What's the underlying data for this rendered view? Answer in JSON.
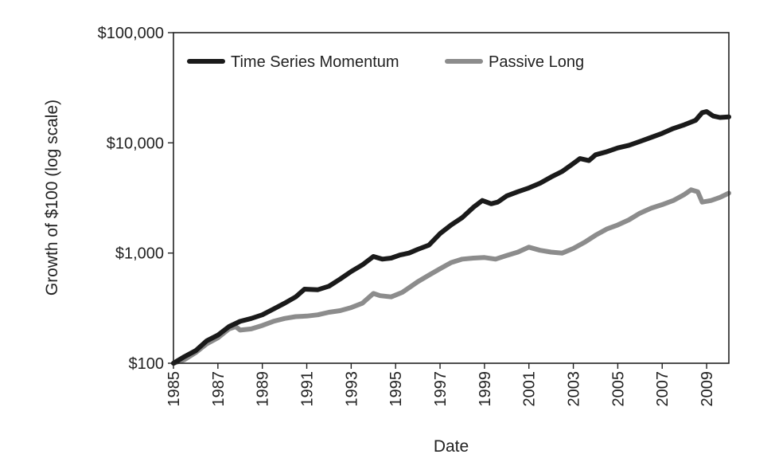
{
  "chart_data": {
    "type": "line",
    "title": "",
    "xlabel": "Date",
    "ylabel": "Growth of $100 (log scale)",
    "y_scale": "log",
    "ylim": [
      100,
      100000
    ],
    "xlim": [
      1985,
      2010
    ],
    "y_ticks": [
      {
        "value": 100,
        "label": "$100"
      },
      {
        "value": 1000,
        "label": "$1,000"
      },
      {
        "value": 10000,
        "label": "$10,000"
      },
      {
        "value": 100000,
        "label": "$100,000"
      }
    ],
    "x_ticks": [
      {
        "value": 1985,
        "label": "1985"
      },
      {
        "value": 1987,
        "label": "1987"
      },
      {
        "value": 1989,
        "label": "1989"
      },
      {
        "value": 1991,
        "label": "1991"
      },
      {
        "value": 1993,
        "label": "1993"
      },
      {
        "value": 1995,
        "label": "1995"
      },
      {
        "value": 1997,
        "label": "1997"
      },
      {
        "value": 1999,
        "label": "1999"
      },
      {
        "value": 2001,
        "label": "2001"
      },
      {
        "value": 2003,
        "label": "2003"
      },
      {
        "value": 2005,
        "label": "2005"
      },
      {
        "value": 2007,
        "label": "2007"
      },
      {
        "value": 2009,
        "label": "2009"
      }
    ],
    "grid": false,
    "legend_position": "top-left",
    "series": [
      {
        "name": "Time Series Momentum",
        "color": "#1a1a1a",
        "points": [
          [
            1985.0,
            100
          ],
          [
            1985.5,
            115
          ],
          [
            1986.0,
            130
          ],
          [
            1986.5,
            160
          ],
          [
            1987.0,
            180
          ],
          [
            1987.5,
            215
          ],
          [
            1988.0,
            240
          ],
          [
            1988.5,
            255
          ],
          [
            1989.0,
            275
          ],
          [
            1989.5,
            310
          ],
          [
            1990.0,
            350
          ],
          [
            1990.5,
            400
          ],
          [
            1990.9,
            470
          ],
          [
            1991.5,
            465
          ],
          [
            1992.0,
            500
          ],
          [
            1992.5,
            580
          ],
          [
            1993.0,
            680
          ],
          [
            1993.5,
            780
          ],
          [
            1994.0,
            930
          ],
          [
            1994.4,
            880
          ],
          [
            1994.8,
            900
          ],
          [
            1995.2,
            960
          ],
          [
            1995.6,
            1000
          ],
          [
            1996.0,
            1080
          ],
          [
            1996.5,
            1180
          ],
          [
            1997.0,
            1500
          ],
          [
            1997.5,
            1800
          ],
          [
            1998.0,
            2100
          ],
          [
            1998.5,
            2600
          ],
          [
            1998.9,
            3000
          ],
          [
            1999.3,
            2800
          ],
          [
            1999.6,
            2900
          ],
          [
            2000.0,
            3300
          ],
          [
            2000.5,
            3600
          ],
          [
            2001.0,
            3900
          ],
          [
            2001.5,
            4300
          ],
          [
            2002.0,
            4900
          ],
          [
            2002.5,
            5500
          ],
          [
            2003.0,
            6500
          ],
          [
            2003.3,
            7200
          ],
          [
            2003.7,
            6900
          ],
          [
            2004.0,
            7800
          ],
          [
            2004.5,
            8300
          ],
          [
            2005.0,
            9000
          ],
          [
            2005.5,
            9500
          ],
          [
            2006.0,
            10300
          ],
          [
            2006.5,
            11200
          ],
          [
            2007.0,
            12200
          ],
          [
            2007.5,
            13500
          ],
          [
            2008.0,
            14600
          ],
          [
            2008.5,
            16000
          ],
          [
            2008.8,
            18800
          ],
          [
            2009.0,
            19200
          ],
          [
            2009.3,
            17500
          ],
          [
            2009.6,
            17000
          ],
          [
            2010.0,
            17200
          ]
        ]
      },
      {
        "name": "Passive Long",
        "color": "#8c8c8c",
        "points": [
          [
            1985.0,
            100
          ],
          [
            1985.5,
            108
          ],
          [
            1986.0,
            125
          ],
          [
            1986.5,
            150
          ],
          [
            1987.0,
            170
          ],
          [
            1987.5,
            205
          ],
          [
            1987.8,
            215
          ],
          [
            1988.0,
            200
          ],
          [
            1988.5,
            205
          ],
          [
            1989.0,
            220
          ],
          [
            1989.5,
            240
          ],
          [
            1990.0,
            255
          ],
          [
            1990.5,
            265
          ],
          [
            1991.0,
            268
          ],
          [
            1991.5,
            275
          ],
          [
            1992.0,
            290
          ],
          [
            1992.5,
            300
          ],
          [
            1993.0,
            320
          ],
          [
            1993.5,
            350
          ],
          [
            1994.0,
            430
          ],
          [
            1994.3,
            410
          ],
          [
            1994.8,
            400
          ],
          [
            1995.3,
            440
          ],
          [
            1996.0,
            550
          ],
          [
            1996.5,
            630
          ],
          [
            1997.0,
            720
          ],
          [
            1997.5,
            820
          ],
          [
            1998.0,
            880
          ],
          [
            1998.5,
            900
          ],
          [
            1999.0,
            910
          ],
          [
            1999.5,
            880
          ],
          [
            2000.0,
            950
          ],
          [
            2000.5,
            1020
          ],
          [
            2001.0,
            1130
          ],
          [
            2001.5,
            1060
          ],
          [
            2002.0,
            1020
          ],
          [
            2002.5,
            1000
          ],
          [
            2003.0,
            1100
          ],
          [
            2003.5,
            1250
          ],
          [
            2004.0,
            1450
          ],
          [
            2004.5,
            1650
          ],
          [
            2005.0,
            1800
          ],
          [
            2005.5,
            2000
          ],
          [
            2006.0,
            2300
          ],
          [
            2006.5,
            2550
          ],
          [
            2007.0,
            2750
          ],
          [
            2007.5,
            3000
          ],
          [
            2008.0,
            3400
          ],
          [
            2008.3,
            3750
          ],
          [
            2008.6,
            3600
          ],
          [
            2008.8,
            2900
          ],
          [
            2009.2,
            3000
          ],
          [
            2009.6,
            3200
          ],
          [
            2010.0,
            3500
          ]
        ]
      }
    ]
  }
}
